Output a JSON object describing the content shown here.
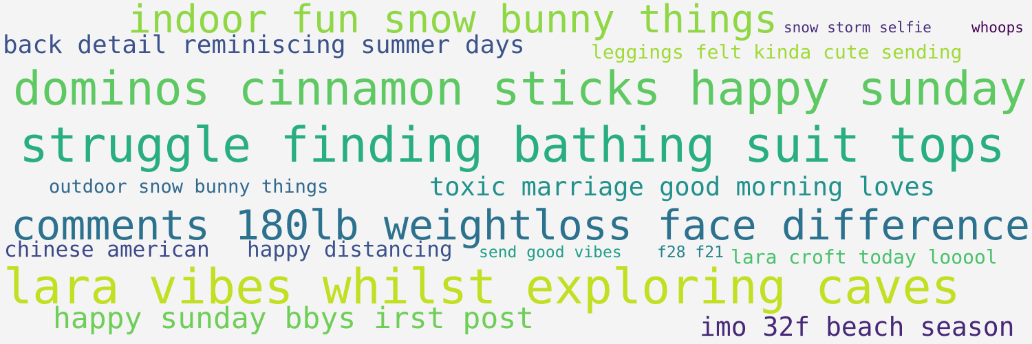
{
  "phrases": [
    {
      "text": "indoor fun snow bunny things",
      "color": "#8fd744"
    },
    {
      "text": "snow storm selfie",
      "color": "#472d7b"
    },
    {
      "text": "whoops",
      "color": "#440154"
    },
    {
      "text": "back detail reminiscing summer days",
      "color": "#3b528b"
    },
    {
      "text": "leggings felt kinda cute sending",
      "color": "#a0da39"
    },
    {
      "text": "dominos cinnamon sticks happy sunday",
      "color": "#5ec962"
    },
    {
      "text": "struggle finding bathing suit tops",
      "color": "#28ae80"
    },
    {
      "text": "outdoor snow bunny things",
      "color": "#31688e"
    },
    {
      "text": "toxic marriage good morning loves",
      "color": "#21918c"
    },
    {
      "text": "comments 180lb weightloss face difference",
      "color": "#2c728e"
    },
    {
      "text": "chinese american",
      "color": "#3e4989"
    },
    {
      "text": "happy distancing",
      "color": "#3b528b"
    },
    {
      "text": "send good vibes",
      "color": "#1f9e89"
    },
    {
      "text": "f28 f21",
      "color": "#25848e"
    },
    {
      "text": "lara croft today looool",
      "color": "#4ac16d"
    },
    {
      "text": "lara vibes whilst exploring caves",
      "color": "#c2df23"
    },
    {
      "text": "happy sunday bbys irst post",
      "color": "#6ece58"
    },
    {
      "text": "imo 32f beach season",
      "color": "#482878"
    }
  ]
}
